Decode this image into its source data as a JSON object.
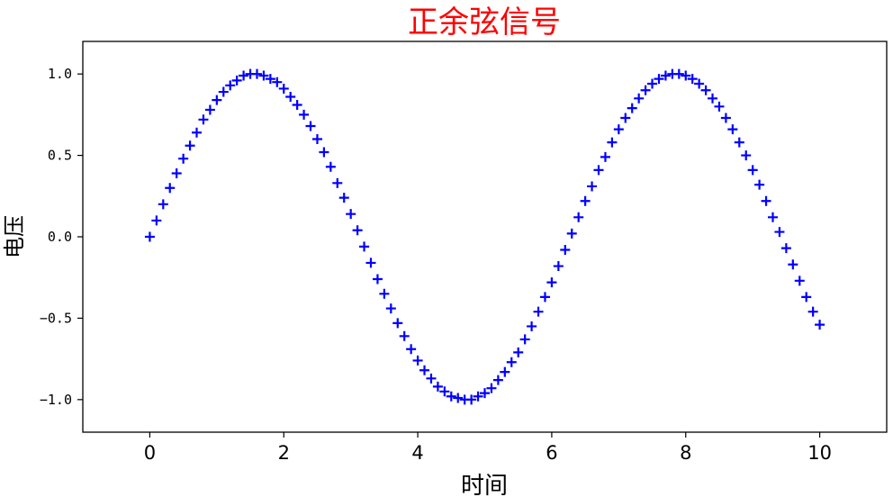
{
  "chart_data": {
    "type": "scatter",
    "title": "正余弦信号",
    "title_color": "#ff0000",
    "xlabel": "时间",
    "ylabel": "电压",
    "xlim": [
      -1,
      11
    ],
    "ylim": [
      -1.2,
      1.2
    ],
    "x_ticks": [
      0,
      2,
      4,
      6,
      8,
      10
    ],
    "x_tick_labels": [
      "0",
      "2",
      "4",
      "6",
      "8",
      "10"
    ],
    "y_ticks": [
      1.0,
      0.5,
      0.0,
      -0.5,
      -1.0
    ],
    "y_tick_labels": [
      "1.0",
      "0.5",
      "0.0",
      "−0.5",
      "−1.0"
    ],
    "grid": false,
    "marker": "+",
    "marker_color": "#0000ff",
    "series": [
      {
        "x": [
          0.0,
          0.1,
          0.2,
          0.3,
          0.4,
          0.5,
          0.6,
          0.7,
          0.8,
          0.9,
          1.0,
          1.1,
          1.2,
          1.3,
          1.4,
          1.5,
          1.6,
          1.7,
          1.8,
          1.9,
          2.0,
          2.1,
          2.2,
          2.3,
          2.4,
          2.5,
          2.6,
          2.7,
          2.8,
          2.9,
          3.0,
          3.1,
          3.2,
          3.3,
          3.4,
          3.5,
          3.6,
          3.7,
          3.8,
          3.9,
          4.0,
          4.1,
          4.2,
          4.3,
          4.4,
          4.5,
          4.6,
          4.7,
          4.8,
          4.9,
          5.0,
          5.1,
          5.2,
          5.3,
          5.4,
          5.5,
          5.6,
          5.7,
          5.8,
          5.9,
          6.0,
          6.1,
          6.2,
          6.3,
          6.4,
          6.5,
          6.6,
          6.7,
          6.8,
          6.9,
          7.0,
          7.1,
          7.2,
          7.3,
          7.4,
          7.5,
          7.6,
          7.7,
          7.8,
          7.9,
          8.0,
          8.1,
          8.2,
          8.3,
          8.4,
          8.5,
          8.6,
          8.7,
          8.8,
          8.9,
          9.0,
          9.1,
          9.2,
          9.3,
          9.4,
          9.5,
          9.6,
          9.7,
          9.8,
          9.9,
          10.0
        ],
        "y": [
          0.0,
          0.1,
          0.2,
          0.3,
          0.39,
          0.48,
          0.56,
          0.64,
          0.72,
          0.78,
          0.84,
          0.89,
          0.93,
          0.96,
          0.99,
          1.0,
          1.0,
          0.99,
          0.97,
          0.95,
          0.91,
          0.86,
          0.81,
          0.75,
          0.68,
          0.6,
          0.52,
          0.43,
          0.33,
          0.24,
          0.14,
          0.04,
          -0.06,
          -0.16,
          -0.26,
          -0.35,
          -0.44,
          -0.53,
          -0.61,
          -0.69,
          -0.76,
          -0.82,
          -0.87,
          -0.92,
          -0.95,
          -0.98,
          -0.99,
          -1.0,
          -1.0,
          -0.98,
          -0.96,
          -0.93,
          -0.88,
          -0.83,
          -0.77,
          -0.71,
          -0.63,
          -0.55,
          -0.46,
          -0.37,
          -0.28,
          -0.18,
          -0.08,
          0.02,
          0.12,
          0.22,
          0.31,
          0.41,
          0.49,
          0.58,
          0.66,
          0.73,
          0.79,
          0.85,
          0.9,
          0.94,
          0.97,
          0.99,
          1.0,
          1.0,
          0.99,
          0.97,
          0.94,
          0.9,
          0.85,
          0.8,
          0.73,
          0.66,
          0.58,
          0.5,
          0.41,
          0.32,
          0.22,
          0.12,
          0.03,
          -0.07,
          -0.17,
          -0.27,
          -0.37,
          -0.46,
          -0.54
        ]
      }
    ]
  }
}
